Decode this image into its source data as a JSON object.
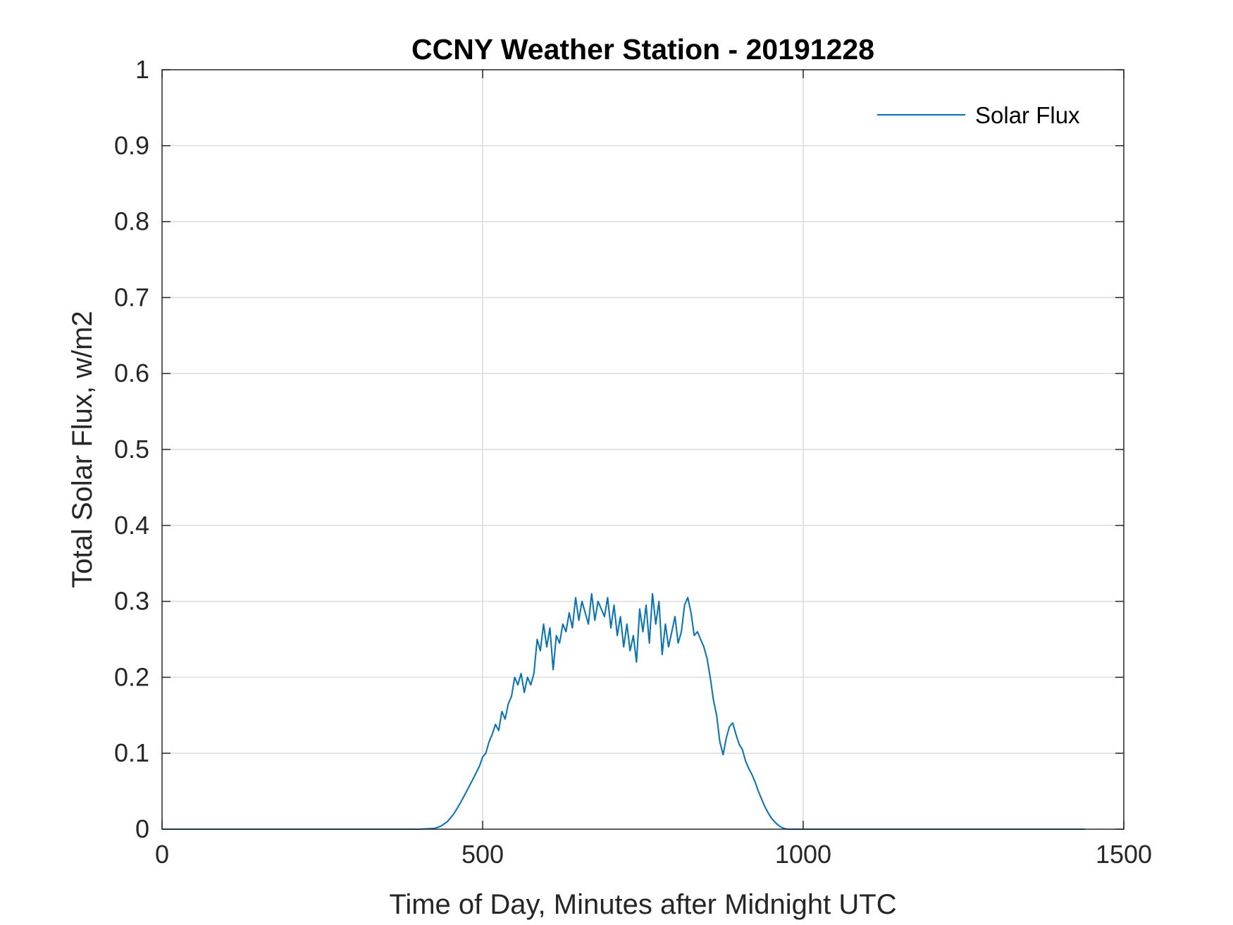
{
  "chart_data": {
    "type": "line",
    "title": "CCNY Weather Station - 20191228",
    "xlabel": "Time of Day, Minutes after Midnight UTC",
    "ylabel": "Total Solar Flux, w/m2",
    "xlim": [
      0,
      1500
    ],
    "ylim": [
      0,
      1
    ],
    "xticks": [
      0,
      500,
      1000,
      1500
    ],
    "xtick_labels": [
      "0",
      "500",
      "1000",
      "1500"
    ],
    "yticks": [
      0,
      0.1,
      0.2,
      0.3,
      0.4,
      0.5,
      0.6,
      0.7,
      0.8,
      0.9,
      1
    ],
    "ytick_labels": [
      "0",
      "0.1",
      "0.2",
      "0.3",
      "0.4",
      "0.5",
      "0.6",
      "0.7",
      "0.8",
      "0.9",
      "1"
    ],
    "grid": true,
    "legend": {
      "placement": "top-right",
      "entries": [
        "Solar Flux"
      ]
    },
    "series": [
      {
        "name": "Solar Flux",
        "color": "#0072BD",
        "x": [
          0,
          100,
          200,
          300,
          400,
          425,
          435,
          445,
          455,
          465,
          475,
          485,
          495,
          500,
          505,
          510,
          515,
          520,
          525,
          530,
          535,
          540,
          545,
          550,
          555,
          560,
          565,
          570,
          575,
          580,
          585,
          590,
          595,
          600,
          605,
          610,
          615,
          620,
          625,
          630,
          635,
          640,
          645,
          650,
          655,
          660,
          665,
          670,
          675,
          680,
          685,
          690,
          695,
          700,
          705,
          710,
          715,
          720,
          725,
          730,
          735,
          740,
          745,
          750,
          755,
          760,
          765,
          770,
          775,
          780,
          785,
          790,
          795,
          800,
          805,
          810,
          815,
          820,
          825,
          830,
          835,
          840,
          845,
          850,
          855,
          860,
          865,
          870,
          875,
          880,
          885,
          890,
          895,
          900,
          905,
          910,
          915,
          920,
          925,
          930,
          935,
          940,
          945,
          950,
          955,
          960,
          965,
          970,
          975,
          980,
          985,
          990,
          995,
          1000,
          1005,
          1010,
          1100,
          1200,
          1300,
          1440
        ],
        "y": [
          0,
          0,
          0,
          0,
          0,
          0.001,
          0.004,
          0.01,
          0.02,
          0.034,
          0.05,
          0.066,
          0.083,
          0.095,
          0.1,
          0.115,
          0.125,
          0.138,
          0.13,
          0.155,
          0.145,
          0.165,
          0.175,
          0.2,
          0.19,
          0.205,
          0.18,
          0.2,
          0.19,
          0.205,
          0.25,
          0.235,
          0.27,
          0.24,
          0.265,
          0.21,
          0.255,
          0.245,
          0.27,
          0.26,
          0.285,
          0.265,
          0.305,
          0.275,
          0.3,
          0.285,
          0.27,
          0.31,
          0.275,
          0.3,
          0.29,
          0.28,
          0.305,
          0.265,
          0.295,
          0.255,
          0.28,
          0.24,
          0.27,
          0.235,
          0.255,
          0.22,
          0.29,
          0.26,
          0.295,
          0.245,
          0.31,
          0.27,
          0.3,
          0.23,
          0.27,
          0.24,
          0.26,
          0.28,
          0.245,
          0.26,
          0.295,
          0.305,
          0.285,
          0.255,
          0.26,
          0.25,
          0.24,
          0.225,
          0.2,
          0.17,
          0.15,
          0.115,
          0.098,
          0.12,
          0.135,
          0.14,
          0.125,
          0.112,
          0.105,
          0.09,
          0.08,
          0.072,
          0.062,
          0.05,
          0.04,
          0.03,
          0.022,
          0.015,
          0.01,
          0.006,
          0.003,
          0.001,
          0,
          0,
          0,
          0,
          0,
          0,
          0,
          0,
          0,
          0,
          0,
          0
        ]
      }
    ]
  }
}
